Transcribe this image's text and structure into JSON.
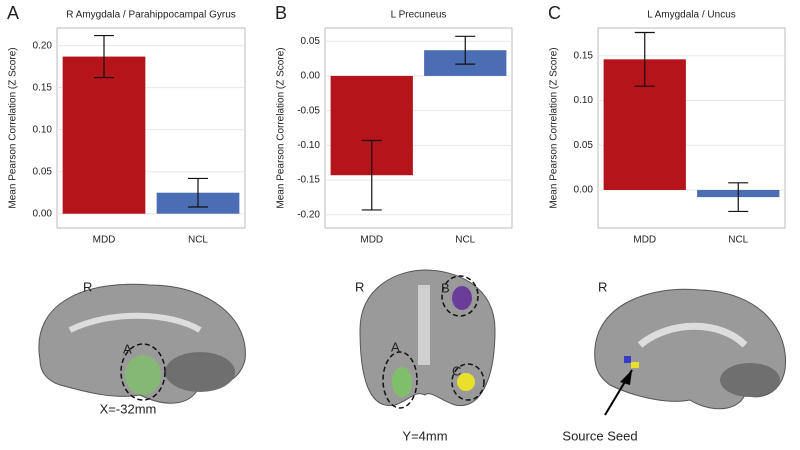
{
  "chart_data": [
    {
      "type": "bar",
      "panel": "A",
      "title": "R Amygdala / Parahippocampal Gyrus",
      "y_label": "Mean Pearson Correlation (Z Score)",
      "categories": [
        "MDD",
        "NCL"
      ],
      "values": [
        0.187,
        0.025
      ],
      "errors": [
        0.025,
        0.017
      ],
      "colors": [
        "#b5141b",
        "#4a6db3"
      ],
      "ylim": [
        -0.017,
        0.221
      ],
      "yticks": [
        {
          "value": 0,
          "label": "0.00"
        },
        {
          "value": 0.05,
          "label": "0.05"
        },
        {
          "value": 0.1,
          "label": "0.10"
        },
        {
          "value": 0.15,
          "label": "0.15"
        },
        {
          "value": 0.2,
          "label": "0.20"
        }
      ],
      "grid": true
    },
    {
      "type": "bar",
      "panel": "B",
      "title": "L Precuneus",
      "y_label": "Mean Pearson Correlation (Z Score)",
      "categories": [
        "MDD",
        "NCL"
      ],
      "values": [
        -0.143,
        0.037
      ],
      "errors": [
        0.05,
        0.02
      ],
      "colors": [
        "#b5141b",
        "#4a6db3"
      ],
      "ylim": [
        -0.219,
        0.069
      ],
      "yticks": [
        {
          "value": -0.2,
          "label": "-0.20"
        },
        {
          "value": -0.15,
          "label": "-0.15"
        },
        {
          "value": -0.1,
          "label": "-0.10"
        },
        {
          "value": -0.05,
          "label": "-0.05"
        },
        {
          "value": 0,
          "label": "0.00"
        },
        {
          "value": 0.05,
          "label": "0.05"
        }
      ],
      "grid": true
    },
    {
      "type": "bar",
      "panel": "C",
      "title": "L Amygdala / Uncus",
      "y_label": "Mean Pearson Correlation (Z Score)",
      "categories": [
        "MDD",
        "NCL"
      ],
      "values": [
        0.146,
        -0.008
      ],
      "errors": [
        0.03,
        0.016
      ],
      "colors": [
        "#b5141b",
        "#4a6db3"
      ],
      "ylim": [
        -0.0425,
        0.181
      ],
      "yticks": [
        {
          "value": 0,
          "label": "0.00"
        },
        {
          "value": 0.05,
          "label": "0.05"
        },
        {
          "value": 0.1,
          "label": "0.10"
        },
        {
          "value": 0.15,
          "label": "0.15"
        }
      ],
      "grid": true
    }
  ],
  "brain_images": [
    {
      "side": "R",
      "regions": [
        "A"
      ],
      "caption": "X=-32mm"
    },
    {
      "side": "R",
      "regions": [
        "B",
        "A",
        "C"
      ],
      "caption": "Y=4mm"
    },
    {
      "side": "R",
      "annotation": "Source Seed"
    }
  ]
}
